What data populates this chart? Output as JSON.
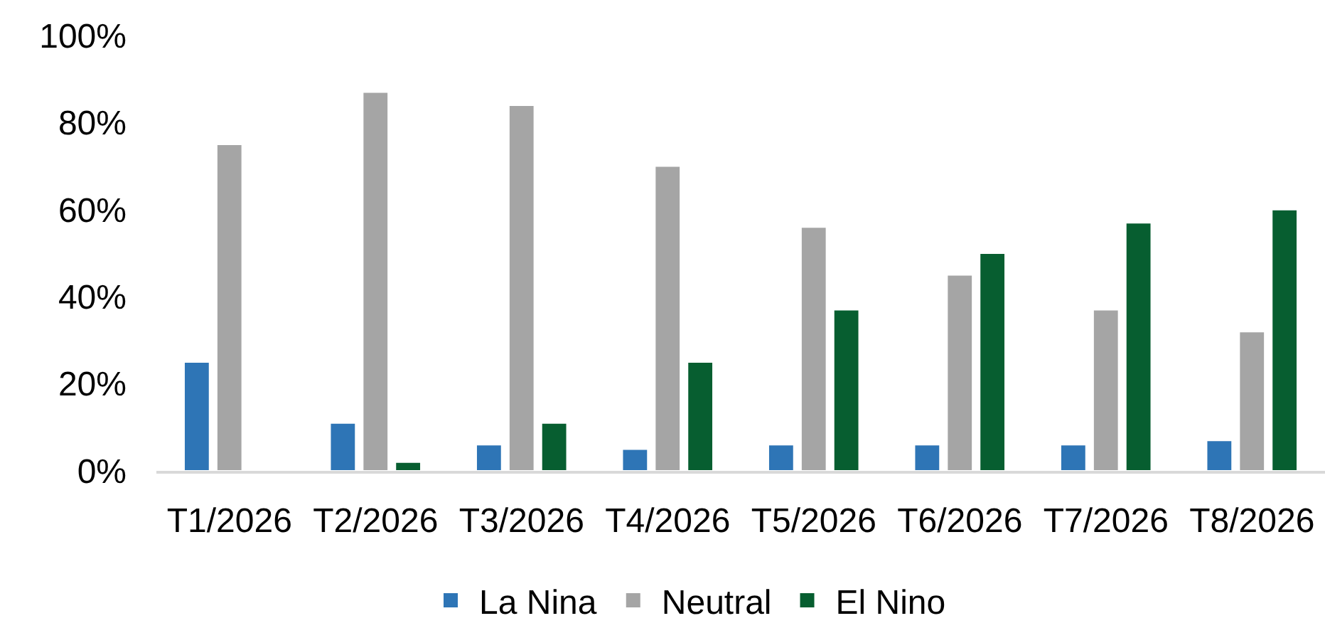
{
  "chart_data": {
    "type": "bar",
    "categories": [
      "T1/2026",
      "T2/2026",
      "T3/2026",
      "T4/2026",
      "T5/2026",
      "T6/2026",
      "T7/2026",
      "T8/2026"
    ],
    "series": [
      {
        "name": "La Nina",
        "color": "#2e75b6",
        "values": [
          25,
          11,
          6,
          5,
          6,
          6,
          6,
          7
        ]
      },
      {
        "name": "Neutral",
        "color": "#a5a5a5",
        "values": [
          75,
          87,
          84,
          70,
          56,
          45,
          37,
          32
        ]
      },
      {
        "name": "El Nino",
        "color": "#075e30",
        "values": [
          null,
          2,
          11,
          25,
          37,
          50,
          57,
          60
        ]
      }
    ],
    "ylim": [
      0,
      100
    ],
    "yticks": [
      {
        "value": 0,
        "label": "0%"
      },
      {
        "value": 20,
        "label": "20%"
      },
      {
        "value": 40,
        "label": "40%"
      },
      {
        "value": 60,
        "label": "60%"
      },
      {
        "value": 80,
        "label": "80%"
      },
      {
        "value": 100,
        "label": "100%"
      }
    ],
    "grid": false,
    "legend": "bottom"
  }
}
